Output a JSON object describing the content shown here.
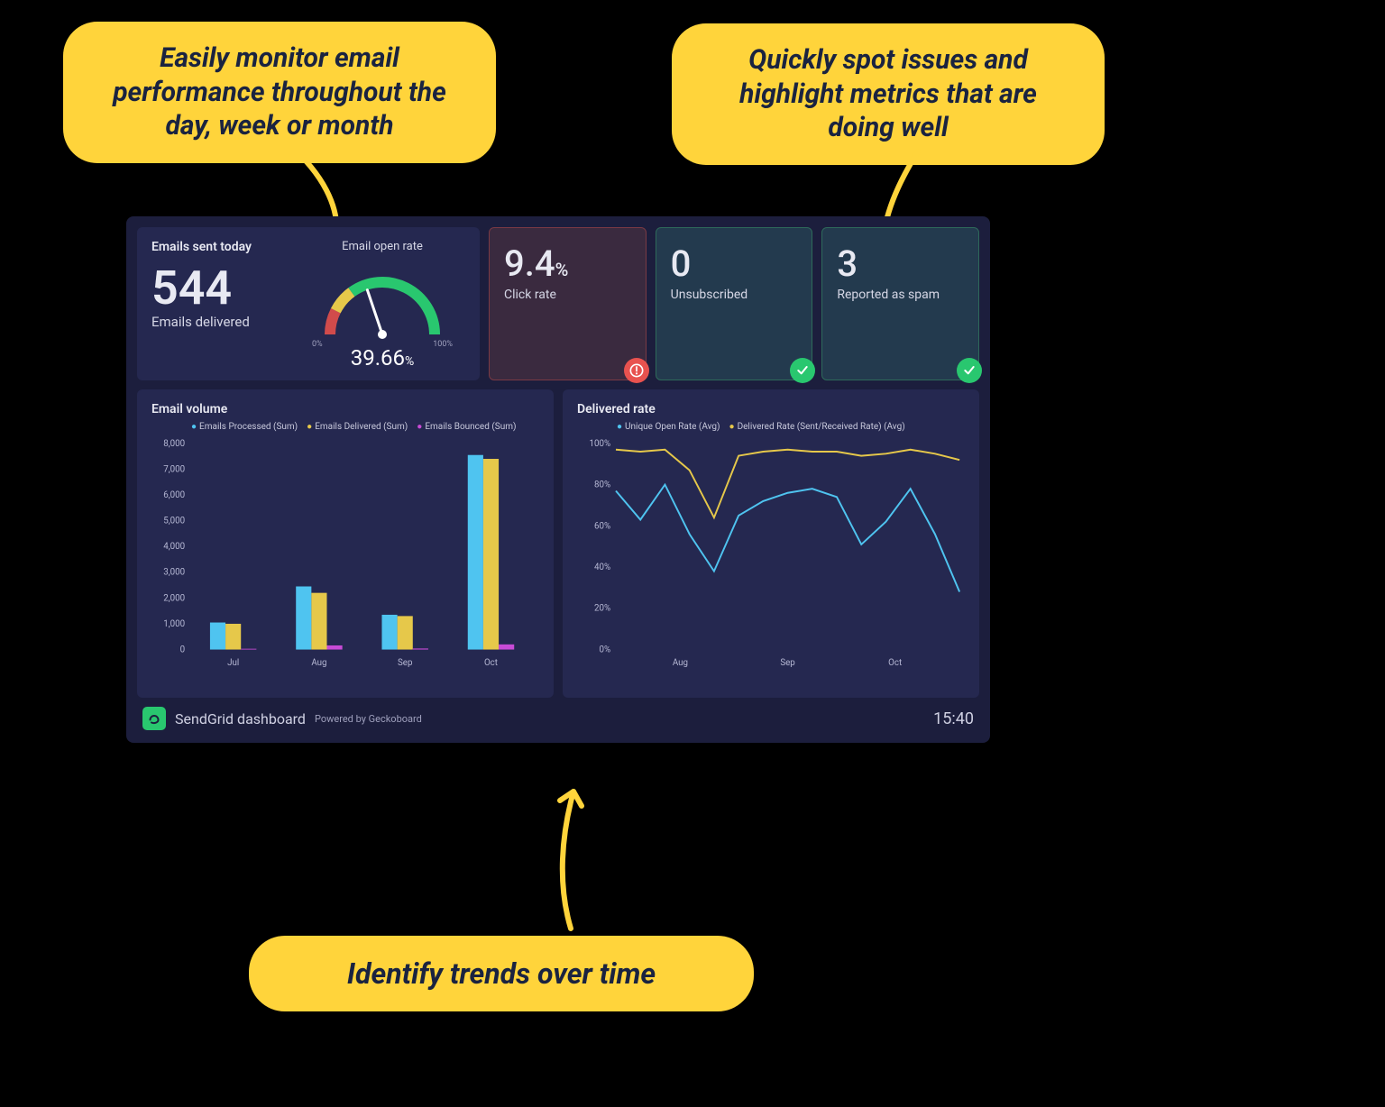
{
  "callouts": {
    "monitor": "Easily monitor email performance throughout the day, week or month",
    "spot": "Quickly spot issues and highlight metrics that are doing well",
    "trends": "Identify trends over time"
  },
  "colors": {
    "callout_bg": "#ffd43b",
    "callout_text": "#1a2340",
    "dash_bg": "#1c1e3d",
    "panel_bg": "#252850",
    "text": "#e8e9f2",
    "muted": "#b6b8d4",
    "grid": "#3a3d6a",
    "green": "#29c76f",
    "red": "#e8524f",
    "cyan": "#4fc4f0",
    "yellow": "#e6c84a",
    "magenta": "#c84bd6",
    "gauge_red": "#d14b4b",
    "gauge_yellow": "#e6c84a",
    "gauge_green": "#29c76f",
    "kpi_warn_border": "#7a3a44",
    "kpi_warn_bg": "#3a2a3f",
    "kpi_ok_border": "#2e6a5a",
    "kpi_ok_bg": "#233a4e"
  },
  "top": {
    "panel_title": "Emails sent today",
    "delivered_value": "544",
    "delivered_label": "Emails delivered",
    "gauge": {
      "title": "Email open rate",
      "value": "39.66",
      "unit": "%",
      "min_label": "0%",
      "max_label": "100%",
      "percent": 39.66,
      "thresholds": {
        "yellow_start": 15,
        "green_start": 30
      }
    }
  },
  "kpis": [
    {
      "value": "9.4",
      "unit": "%",
      "label": "Click rate",
      "status": "warn"
    },
    {
      "value": "0",
      "unit": "",
      "label": "Unsubscribed",
      "status": "ok"
    },
    {
      "value": "3",
      "unit": "",
      "label": "Reported as spam",
      "status": "ok"
    }
  ],
  "volume_chart": {
    "title": "Email volume",
    "type": "bar",
    "legend": [
      {
        "label": "Emails Processed (Sum)",
        "color": "#4fc4f0"
      },
      {
        "label": "Emails Delivered (Sum)",
        "color": "#e6c84a"
      },
      {
        "label": "Emails Bounced (Sum)",
        "color": "#c84bd6"
      }
    ],
    "y": {
      "min": 0,
      "max": 8000,
      "step": 1000
    },
    "categories": [
      "Jul",
      "Aug",
      "Sep",
      "Oct"
    ],
    "series": {
      "processed": [
        1050,
        2450,
        1350,
        7550
      ],
      "delivered": [
        1000,
        2200,
        1300,
        7400
      ],
      "bounced": [
        30,
        160,
        40,
        200
      ]
    },
    "bar_width_ratio": 0.18,
    "label_fontsize": 10
  },
  "rate_chart": {
    "title": "Delivered rate",
    "type": "line",
    "legend": [
      {
        "label": "Unique Open Rate (Avg)",
        "color": "#4fc4f0"
      },
      {
        "label": "Delivered Rate (Sent/Received Rate) (Avg)",
        "color": "#e6c84a"
      }
    ],
    "y": {
      "min": 0,
      "max": 100,
      "step": 20,
      "unit": "%"
    },
    "x_labels": [
      "Aug",
      "Sep",
      "Oct"
    ],
    "n_points": 15,
    "series": {
      "open_rate": [
        77,
        63,
        80,
        56,
        38,
        65,
        72,
        76,
        78,
        74,
        51,
        62,
        78,
        56,
        28
      ],
      "delivered_rate": [
        97,
        96,
        97,
        87,
        64,
        94,
        96,
        97,
        96,
        96,
        94,
        95,
        97,
        95,
        92
      ]
    },
    "line_width": 2,
    "label_fontsize": 10
  },
  "footer": {
    "brand": "SendGrid dashboard",
    "powered": "Powered by Geckoboard",
    "time": "15:40"
  }
}
